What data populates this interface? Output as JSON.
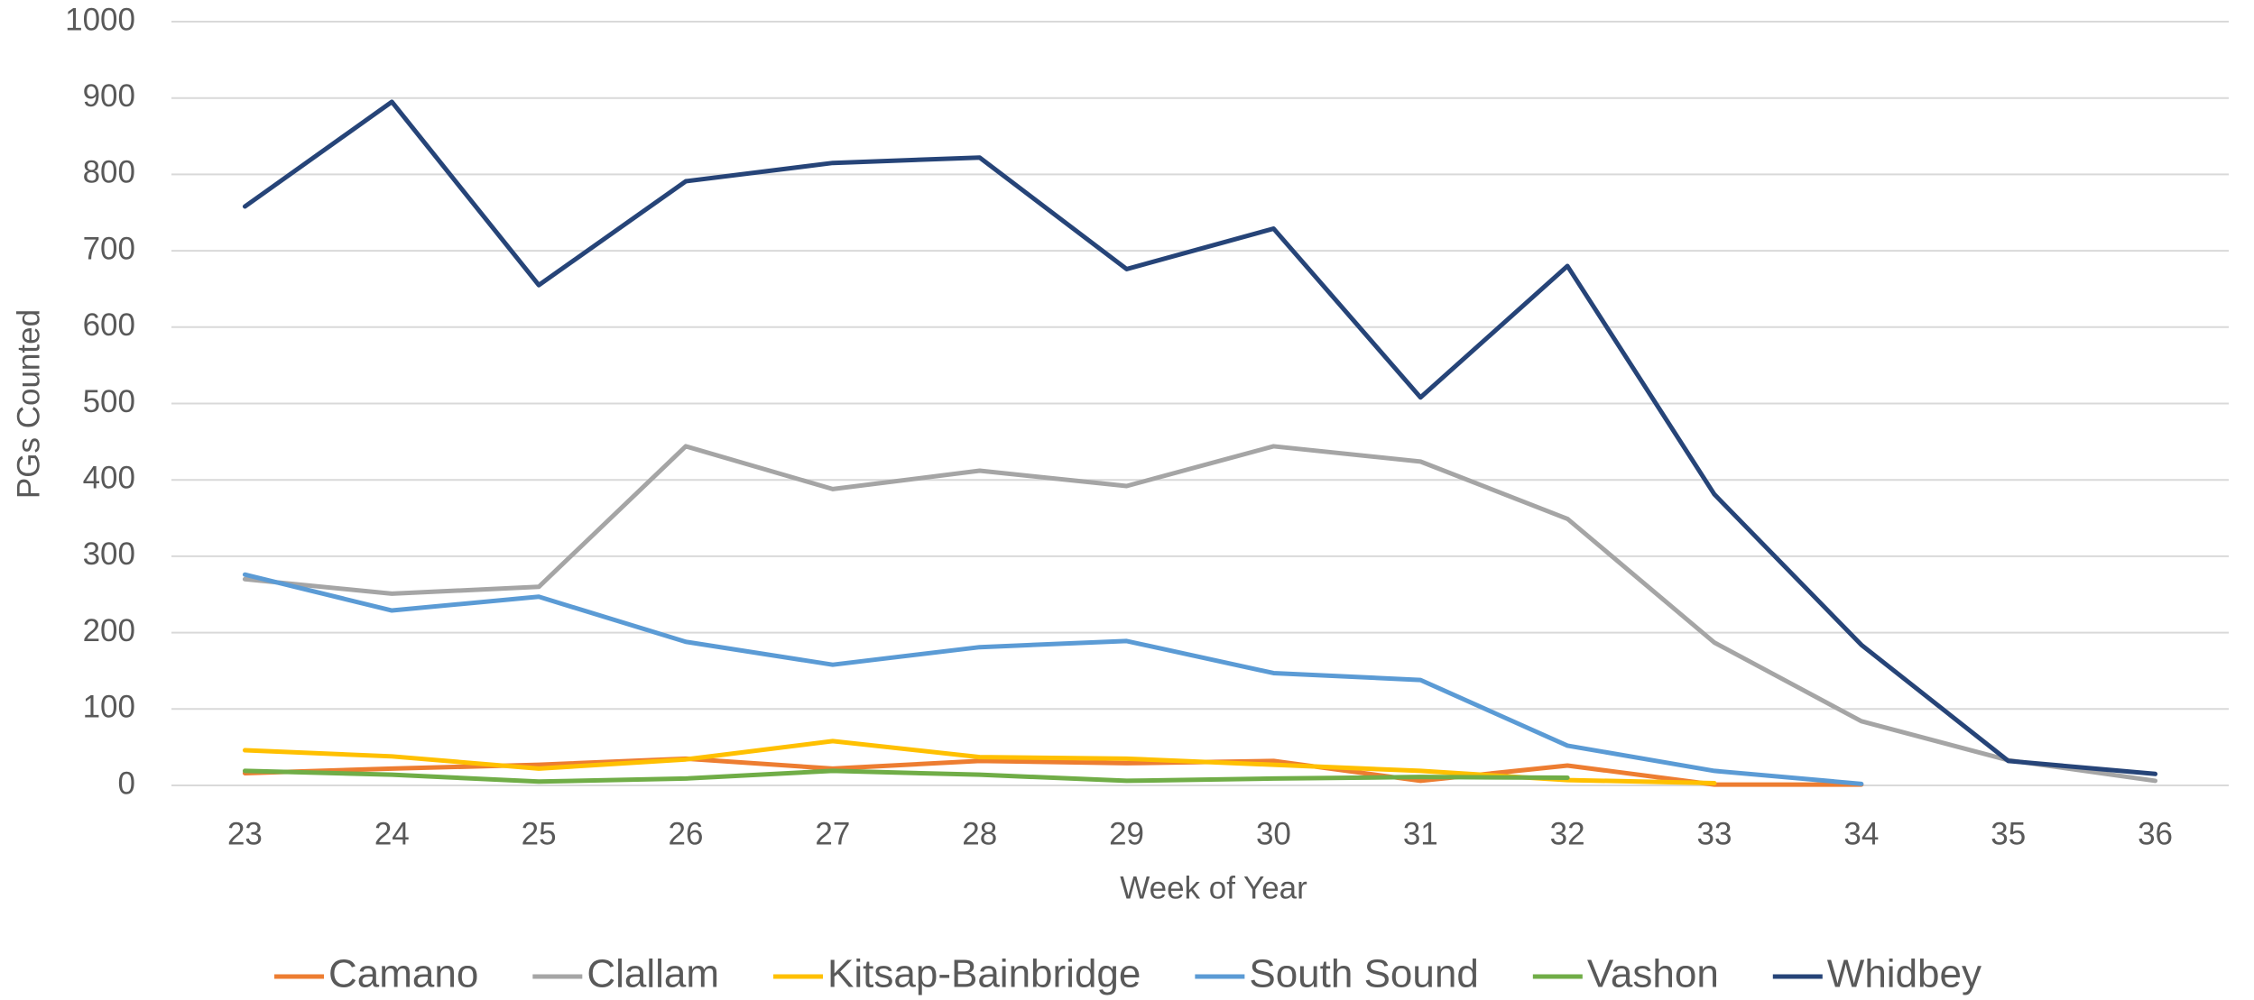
{
  "chart_data": {
    "type": "line",
    "x_label": "Week of Year",
    "y_label": "PGs Counted",
    "x": [
      23,
      24,
      25,
      26,
      27,
      28,
      29,
      30,
      31,
      32,
      33,
      34,
      35,
      36
    ],
    "xlim": [
      22.5,
      36.5
    ],
    "xticks": [
      23,
      24,
      25,
      26,
      27,
      28,
      29,
      30,
      31,
      32,
      33,
      34,
      35,
      36
    ],
    "ylim": [
      0,
      1000
    ],
    "yticks": [
      0,
      100,
      200,
      300,
      400,
      500,
      600,
      700,
      800,
      900,
      1000
    ],
    "grid": true,
    "legend": "bottom",
    "series": [
      {
        "name": "Camano",
        "color": "#ed7d31",
        "values": [
          16,
          22,
          27,
          35,
          22,
          32,
          29,
          32,
          6,
          26,
          1,
          1,
          null,
          null
        ]
      },
      {
        "name": "Clallam",
        "color": "#a5a5a5",
        "values": [
          270,
          251,
          260,
          444,
          388,
          412,
          392,
          444,
          424,
          349,
          187,
          84,
          33,
          6
        ]
      },
      {
        "name": "Kitsap-Bainbridge",
        "color": "#ffc000",
        "values": [
          46,
          38,
          22,
          34,
          58,
          37,
          35,
          27,
          19,
          7,
          3,
          null,
          null,
          null
        ]
      },
      {
        "name": "South Sound",
        "color": "#5b9bd5",
        "values": [
          276,
          229,
          247,
          188,
          158,
          181,
          189,
          147,
          138,
          52,
          19,
          2,
          null,
          null
        ]
      },
      {
        "name": "Vashon",
        "color": "#70ad47",
        "values": [
          19,
          14,
          5,
          9,
          19,
          14,
          6,
          9,
          11,
          10,
          null,
          null,
          null,
          null
        ]
      },
      {
        "name": "Whidbey",
        "color": "#264478",
        "values": [
          758,
          895,
          655,
          791,
          815,
          822,
          676,
          729,
          508,
          680,
          381,
          184,
          32,
          15
        ]
      }
    ]
  }
}
